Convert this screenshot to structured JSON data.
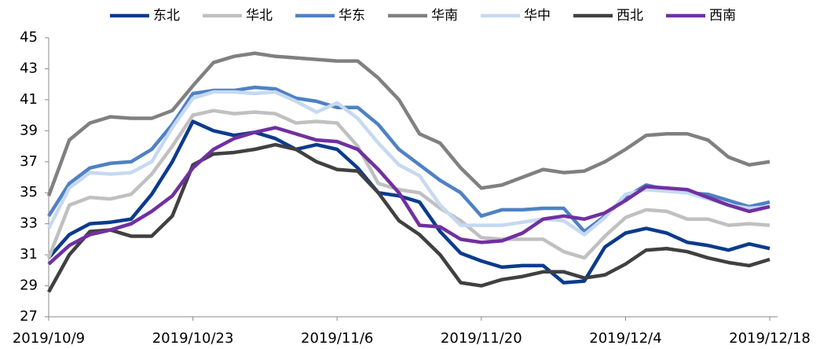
{
  "chart_data": {
    "type": "line",
    "categories": [
      "2019/10/9",
      null,
      null,
      null,
      null,
      null,
      null,
      "2019/10/23",
      null,
      null,
      null,
      null,
      null,
      null,
      "2019/11/6",
      null,
      null,
      null,
      null,
      null,
      null,
      "2019/11/20",
      null,
      null,
      null,
      null,
      null,
      null,
      "2019/12/4",
      null,
      null,
      null,
      null,
      null,
      null,
      "2019/12/18"
    ],
    "ylim": [
      27,
      45
    ],
    "yticks": [
      27,
      29,
      31,
      33,
      35,
      37,
      39,
      41,
      43,
      45
    ],
    "grid": false,
    "legend": "top",
    "series": [
      {
        "name": "东北",
        "color": "#0b3b8c",
        "values": [
          30.8,
          32.3,
          33.0,
          33.1,
          33.3,
          34.9,
          37.0,
          39.6,
          39.0,
          38.7,
          38.9,
          38.5,
          37.8,
          38.1,
          37.8,
          36.6,
          35.0,
          34.8,
          34.4,
          32.5,
          31.1,
          30.6,
          30.2,
          30.3,
          30.3,
          29.2,
          29.3,
          31.5,
          32.4,
          32.7,
          32.4,
          31.8,
          31.6,
          31.3,
          31.7,
          31.4
        ]
      },
      {
        "name": "华北",
        "color": "#c0c0c0",
        "values": [
          30.8,
          34.2,
          34.7,
          34.6,
          34.9,
          36.2,
          38.0,
          40.0,
          40.3,
          40.1,
          40.2,
          40.1,
          39.5,
          39.6,
          39.5,
          38.0,
          35.6,
          35.2,
          35.0,
          34.0,
          33.2,
          32.1,
          32.0,
          32.0,
          32.0,
          31.2,
          30.8,
          32.2,
          33.4,
          33.9,
          33.8,
          33.3,
          33.3,
          32.9,
          33.0,
          32.9
        ]
      },
      {
        "name": "华东",
        "color": "#4f81c4",
        "values": [
          33.5,
          35.6,
          36.6,
          36.9,
          37.0,
          37.8,
          39.4,
          41.4,
          41.6,
          41.6,
          41.8,
          41.7,
          41.1,
          40.9,
          40.5,
          40.5,
          39.4,
          37.8,
          36.8,
          35.8,
          35.0,
          33.5,
          33.9,
          33.9,
          34.0,
          34.0,
          32.5,
          33.5,
          34.7,
          35.5,
          35.2,
          35.0,
          34.9,
          34.5,
          34.1,
          34.4
        ]
      },
      {
        "name": "华南",
        "color": "#808080",
        "values": [
          34.8,
          38.4,
          39.5,
          39.9,
          39.8,
          39.8,
          40.3,
          41.9,
          43.4,
          43.8,
          44.0,
          43.8,
          43.7,
          43.6,
          43.5,
          43.5,
          42.4,
          41.0,
          38.8,
          38.2,
          36.6,
          35.3,
          35.5,
          36.0,
          36.5,
          36.3,
          36.4,
          37.0,
          37.8,
          38.7,
          38.8,
          38.8,
          38.4,
          37.3,
          36.8,
          37.0
        ]
      },
      {
        "name": "华中",
        "color": "#c6d9f0",
        "values": [
          32.7,
          35.3,
          36.3,
          36.2,
          36.3,
          37.0,
          39.2,
          41.1,
          41.5,
          41.5,
          41.4,
          41.5,
          40.9,
          40.2,
          40.8,
          39.8,
          38.2,
          36.8,
          36.1,
          34.2,
          32.9,
          32.9,
          32.9,
          33.1,
          33.3,
          33.2,
          32.3,
          33.4,
          34.9,
          35.2,
          35.1,
          35.0,
          34.6,
          34.2,
          34.0,
          34.1
        ]
      },
      {
        "name": "西北",
        "color": "#404040",
        "values": [
          28.6,
          31.0,
          32.5,
          32.6,
          32.2,
          32.2,
          33.5,
          36.8,
          37.5,
          37.6,
          37.8,
          38.1,
          37.8,
          37.0,
          36.5,
          36.4,
          35.0,
          33.2,
          32.3,
          31.0,
          29.2,
          29.0,
          29.4,
          29.6,
          29.9,
          29.9,
          29.5,
          29.7,
          30.4,
          31.3,
          31.4,
          31.2,
          30.8,
          30.5,
          30.3,
          30.7
        ]
      },
      {
        "name": "西南",
        "color": "#7030a0",
        "values": [
          30.4,
          31.6,
          32.3,
          32.6,
          33.0,
          33.8,
          34.8,
          36.6,
          37.8,
          38.5,
          38.9,
          39.2,
          38.8,
          38.4,
          38.3,
          37.8,
          36.5,
          35.0,
          32.9,
          32.8,
          32.0,
          31.8,
          31.9,
          32.4,
          33.3,
          33.5,
          33.3,
          33.7,
          34.5,
          35.4,
          35.3,
          35.2,
          34.7,
          34.2,
          33.8,
          34.1
        ]
      }
    ]
  }
}
